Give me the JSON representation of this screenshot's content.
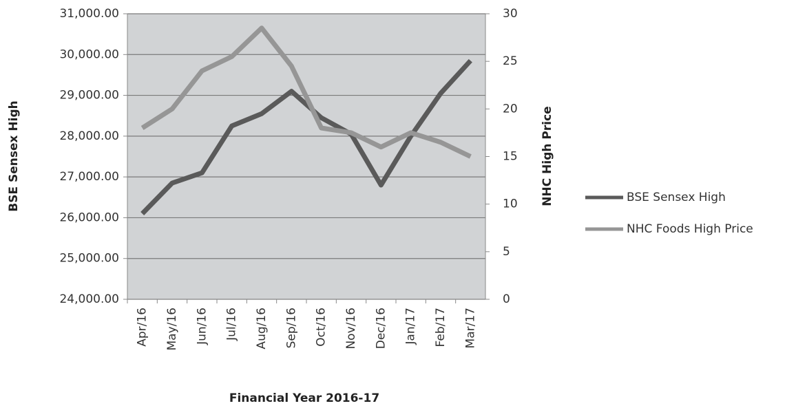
{
  "chart_data": {
    "type": "line",
    "x_label": "Financial Year 2016-17",
    "y_label": "BSE Sensex High",
    "y2_label": "NHC High Price",
    "categories": [
      "Apr/16",
      "May/16",
      "Jun/16",
      "Jul/16",
      "Aug/16",
      "Sep/16",
      "Oct/16",
      "Nov/16",
      "Dec/16",
      "Jan/17",
      "Feb/17",
      "Mar/17"
    ],
    "series": [
      {
        "name": "BSE Sensex High",
        "color": "#5a5a5a",
        "values": [
          26100,
          26850,
          27100,
          28250,
          28550,
          29100,
          28450,
          28050,
          26800,
          28000,
          29050,
          29850
        ]
      },
      {
        "name": "NHC Foods High Price",
        "color": "#969696",
        "axis": "y2",
        "values": [
          18,
          20,
          24,
          25.5,
          28.5,
          24.5,
          18,
          17.5,
          16,
          17.5,
          16.5,
          15
        ]
      }
    ],
    "ylim": [
      24000,
      31000
    ],
    "yticks": [
      {
        "value": 24000,
        "label": "24,000.00"
      },
      {
        "value": 25000,
        "label": "25,000.00"
      },
      {
        "value": 26000,
        "label": "26,000.00"
      },
      {
        "value": 27000,
        "label": "27,000.00"
      },
      {
        "value": 28000,
        "label": "28,000.00"
      },
      {
        "value": 29000,
        "label": "29,000.00"
      },
      {
        "value": 30000,
        "label": "30,000.00"
      },
      {
        "value": 31000,
        "label": "31,000.00"
      }
    ],
    "y2lim": [
      0,
      30
    ],
    "y2ticks": [
      0,
      5,
      10,
      15,
      20,
      25,
      30
    ],
    "grid": true,
    "legend": "right"
  }
}
